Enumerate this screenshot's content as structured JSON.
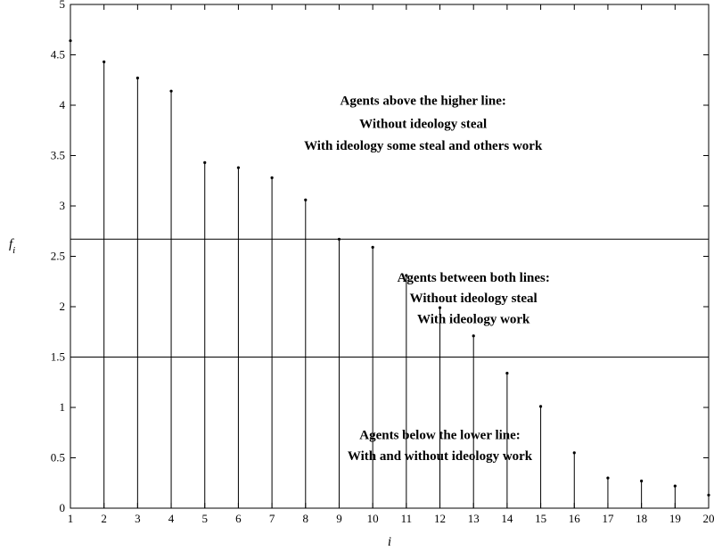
{
  "chart_data": {
    "type": "stem",
    "title": "",
    "xlabel": "i",
    "ylabel": "f",
    "ylabel_sub": "i",
    "xlim": [
      1,
      20
    ],
    "ylim": [
      0,
      5
    ],
    "xticks": [
      1,
      2,
      3,
      4,
      5,
      6,
      7,
      8,
      9,
      10,
      11,
      12,
      13,
      14,
      15,
      16,
      17,
      18,
      19,
      20
    ],
    "yticks": [
      "0",
      "0.5",
      "1",
      "1.5",
      "2",
      "2.5",
      "3",
      "3.5",
      "4",
      "4.5",
      "5"
    ],
    "grid": false,
    "x": [
      1,
      2,
      3,
      4,
      5,
      6,
      7,
      8,
      9,
      10,
      11,
      12,
      13,
      14,
      15,
      16,
      17,
      18,
      19,
      20
    ],
    "values": [
      4.64,
      4.43,
      4.27,
      4.14,
      3.43,
      3.38,
      3.28,
      3.06,
      2.67,
      2.59,
      2.31,
      1.99,
      1.71,
      1.34,
      1.01,
      0.55,
      0.3,
      0.27,
      0.22,
      0.13
    ],
    "hlines": [
      2.67,
      1.5
    ],
    "annotations": [
      {
        "lines": [
          "Agents above the higher line:",
          "Without ideology steal",
          "With ideology some steal and others work"
        ],
        "x": 11.5,
        "y": [
          4.05,
          3.82,
          3.6
        ]
      },
      {
        "lines": [
          "Agents between both lines:",
          "Without ideology steal",
          "With ideology work"
        ],
        "x": 13.0,
        "y": [
          2.29,
          2.09,
          1.88
        ]
      },
      {
        "lines": [
          "Agents below the lower line:",
          "With and without ideology work"
        ],
        "x": 12.0,
        "y": [
          0.73,
          0.52
        ]
      }
    ]
  }
}
